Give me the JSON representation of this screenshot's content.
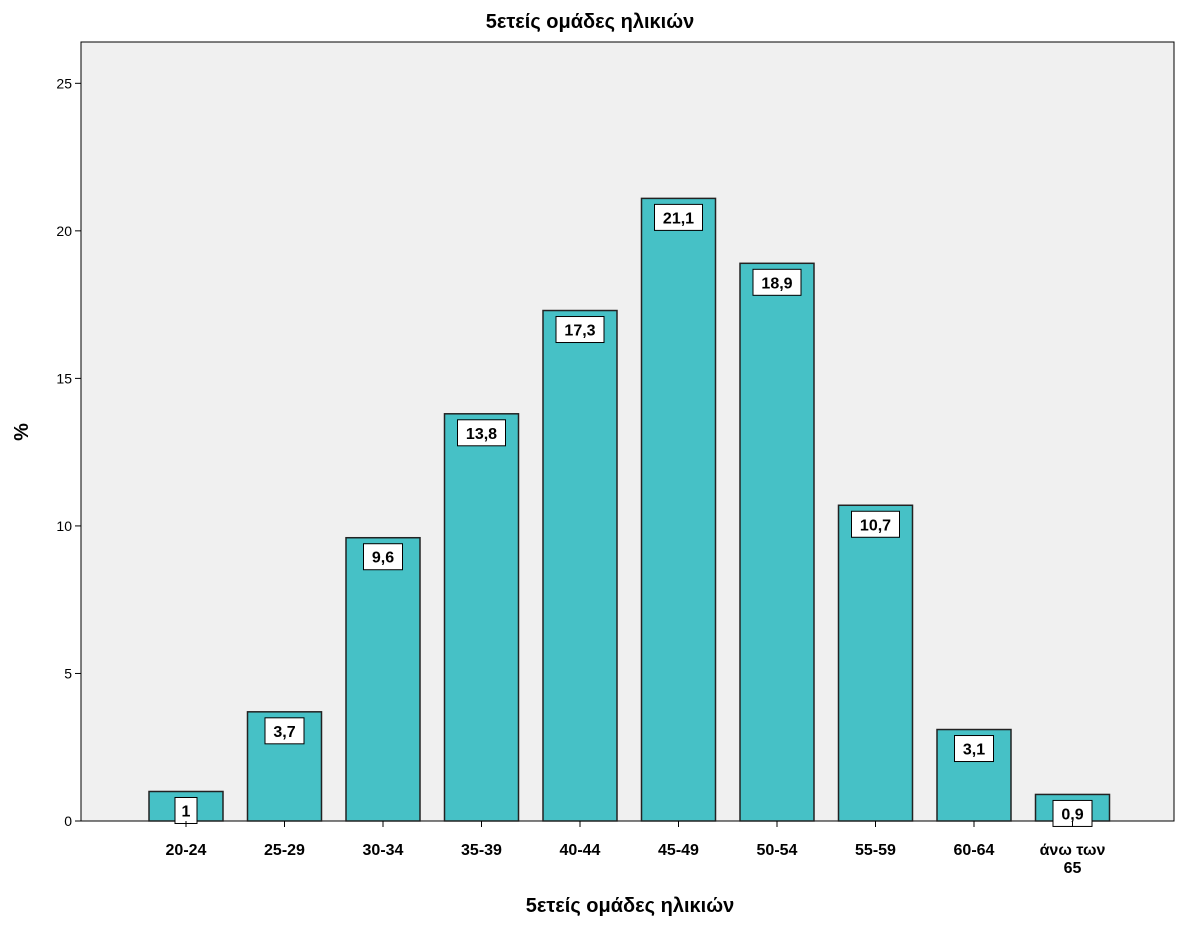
{
  "chart_data": {
    "type": "bar",
    "title": "5ετείς ομάδες ηλικιών",
    "xlabel": "5ετείς ομάδες ηλικιών",
    "ylabel": "%",
    "categories": [
      "20-24",
      "25-29",
      "30-34",
      "35-39",
      "40-44",
      "45-49",
      "50-54",
      "55-59",
      "60-64",
      "άνω των 65"
    ],
    "values": [
      1,
      3.7,
      9.6,
      13.8,
      17.3,
      21.1,
      18.9,
      10.7,
      3.1,
      0.9
    ],
    "data_labels": [
      "1",
      "3,7",
      "9,6",
      "13,8",
      "17,3",
      "21,1",
      "18,9",
      "10,7",
      "3,1",
      "0,9"
    ],
    "yticks": [
      0,
      5,
      10,
      15,
      20,
      25
    ],
    "ylim": [
      0,
      26.4
    ],
    "grid": false,
    "colors": {
      "bar_fill": "#46c1c6",
      "bar_stroke": "#222222",
      "plot_background": "#f0f0f0",
      "label_box": "#ffffff"
    }
  }
}
